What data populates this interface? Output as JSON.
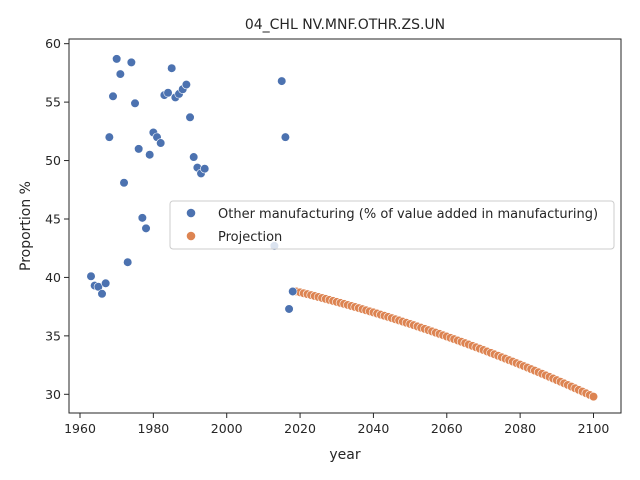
{
  "chart_data": {
    "type": "scatter",
    "title": "04_CHL NV.MNF.OTHR.ZS.UN",
    "xlabel": "year",
    "ylabel": "Proportion %",
    "xlim": [
      1957,
      2107.5
    ],
    "ylim": [
      28.4,
      60.4
    ],
    "xticks": [
      1960,
      1980,
      2000,
      2020,
      2040,
      2060,
      2080,
      2100
    ],
    "yticks": [
      30,
      35,
      40,
      45,
      50,
      55,
      60
    ],
    "grid": false,
    "legend_position": "center-right",
    "series": [
      {
        "name": "Other manufacturing (% of value added in manufacturing)",
        "color": "#4c72b0",
        "points": [
          [
            1963,
            40.1
          ],
          [
            1964,
            39.3
          ],
          [
            1965,
            39.2
          ],
          [
            1966,
            38.6
          ],
          [
            1967,
            39.5
          ],
          [
            1968,
            52.0
          ],
          [
            1969,
            55.5
          ],
          [
            1970,
            58.7
          ],
          [
            1971,
            57.4
          ],
          [
            1972,
            48.1
          ],
          [
            1973,
            41.3
          ],
          [
            1974,
            58.4
          ],
          [
            1975,
            54.9
          ],
          [
            1976,
            51.0
          ],
          [
            1977,
            45.1
          ],
          [
            1978,
            44.2
          ],
          [
            1979,
            50.5
          ],
          [
            1980,
            52.4
          ],
          [
            1981,
            52.0
          ],
          [
            1982,
            51.5
          ],
          [
            1983,
            55.6
          ],
          [
            1984,
            55.8
          ],
          [
            1985,
            57.9
          ],
          [
            1986,
            55.4
          ],
          [
            1987,
            55.7
          ],
          [
            1988,
            56.1
          ],
          [
            1989,
            56.5
          ],
          [
            1990,
            53.7
          ],
          [
            1991,
            50.3
          ],
          [
            1992,
            49.4
          ],
          [
            1993,
            48.9
          ],
          [
            1994,
            49.3
          ],
          [
            2013,
            42.7
          ],
          [
            2015,
            56.8
          ],
          [
            2016,
            52.0
          ],
          [
            2017,
            37.3
          ],
          [
            2018,
            38.8
          ]
        ]
      },
      {
        "name": "Projection",
        "color": "#dd8452",
        "start_year": 2019,
        "end_year": 2100,
        "start_value": 38.8,
        "end_value": 29.8,
        "curve_midpoint_value": 35.0
      }
    ]
  }
}
